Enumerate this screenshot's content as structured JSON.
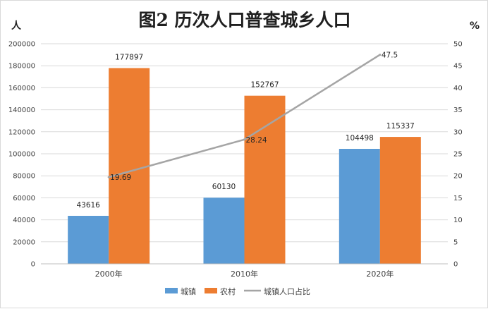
{
  "chart_data": {
    "type": "bar",
    "title": "图2  历次人口普查城乡人口",
    "y_left_unit": "人",
    "y_right_unit": "%",
    "categories": [
      "2000年",
      "2010年",
      "2020年"
    ],
    "ylim": [
      0,
      200000
    ],
    "y_ticks": [
      "0",
      "20000",
      "40000",
      "60000",
      "80000",
      "100000",
      "120000",
      "140000",
      "160000",
      "180000",
      "200000"
    ],
    "y2lim": [
      0,
      50
    ],
    "y2_ticks": [
      "0",
      "5",
      "10",
      "15",
      "20",
      "25",
      "30",
      "35",
      "40",
      "45",
      "50"
    ],
    "grid": true,
    "legend_position": "bottom",
    "series": [
      {
        "name": "城镇",
        "kind": "bar",
        "axis": "left",
        "color": "#5b9bd5",
        "values": [
          43616,
          60130,
          104498
        ],
        "labels": [
          "43616",
          "60130",
          "104498"
        ]
      },
      {
        "name": "农村",
        "kind": "bar",
        "axis": "left",
        "color": "#ed7d31",
        "values": [
          177897,
          152767,
          115337
        ],
        "labels": [
          "177897",
          "152767",
          "115337"
        ]
      },
      {
        "name": "城镇人口占比",
        "kind": "line",
        "axis": "right",
        "color": "#a5a5a5",
        "values": [
          19.69,
          28.24,
          47.5
        ],
        "labels": [
          "19.69",
          "28.24",
          "47.5"
        ]
      }
    ]
  }
}
